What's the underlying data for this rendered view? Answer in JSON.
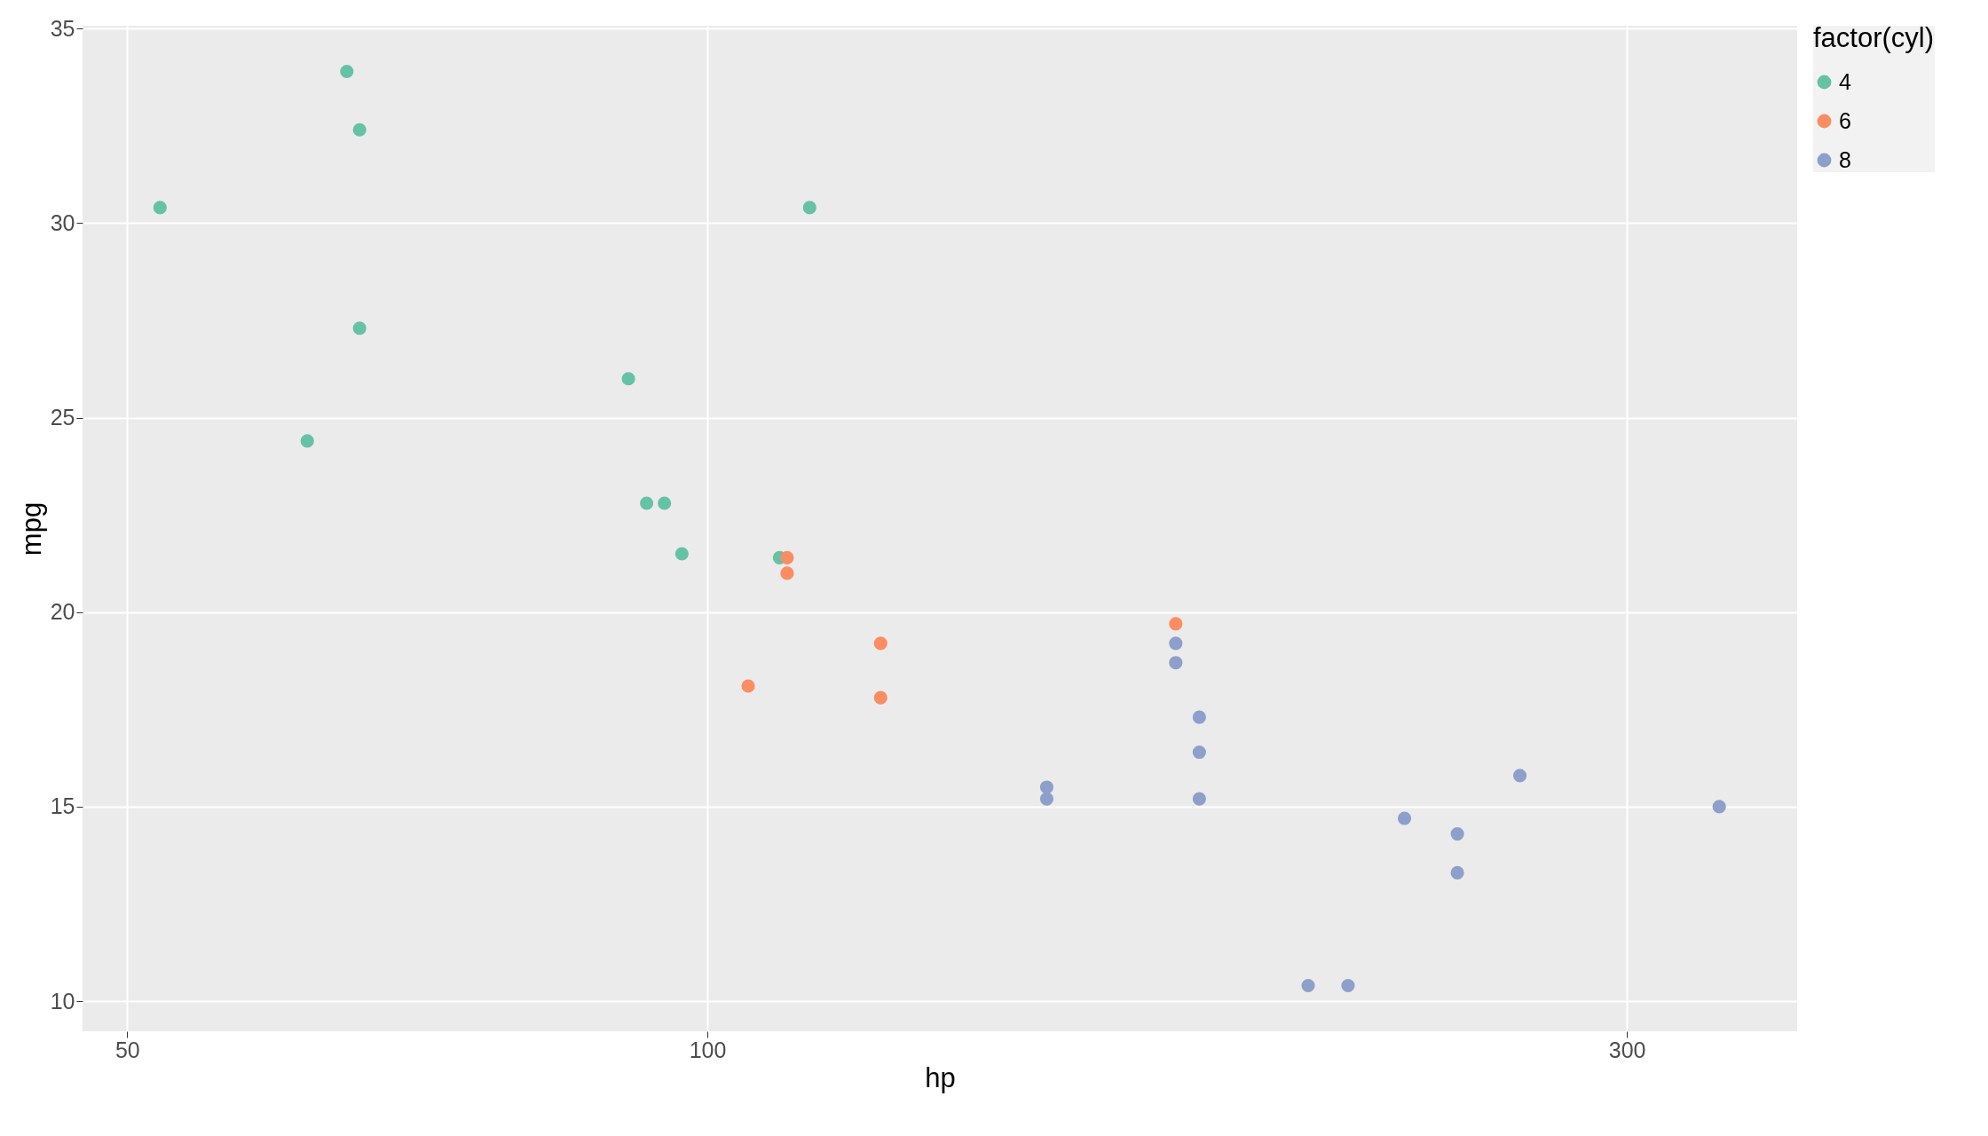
{
  "chart_data": {
    "type": "scatter",
    "xlabel": "hp",
    "ylabel": "mpg",
    "legend_title": "factor(cyl)",
    "log": "x",
    "grid": true,
    "legend": "right",
    "marker": "circle",
    "xlim": [
      47.4,
      367.7
    ],
    "xticks": [
      50,
      100,
      300
    ],
    "ylim": [
      9.225,
      35.075
    ],
    "yticks": [
      10,
      15,
      20,
      25,
      30,
      35
    ],
    "series": [
      {
        "name": "4",
        "color": "#66c2a5",
        "x": [
          93,
          62,
          95,
          66,
          52,
          65,
          97,
          66,
          91,
          113,
          109
        ],
        "values": [
          22.8,
          24.4,
          22.8,
          32.4,
          30.4,
          33.9,
          21.5,
          27.3,
          26.0,
          30.4,
          21.4
        ]
      },
      {
        "name": "6",
        "color": "#fc8d62",
        "x": [
          110,
          110,
          105,
          123,
          123,
          175
        ],
        "values": [
          21.0,
          21.4,
          18.1,
          19.2,
          17.8,
          19.7
        ]
      },
      {
        "name": "8",
        "color": "#8da0cb",
        "x": [
          175,
          245,
          180,
          180,
          180,
          205,
          215,
          230,
          150,
          150,
          245,
          175,
          264,
          335
        ],
        "values": [
          18.7,
          14.3,
          16.4,
          17.3,
          15.2,
          10.4,
          10.4,
          14.7,
          15.5,
          15.2,
          13.3,
          19.2,
          15.8,
          15.0
        ]
      }
    ]
  }
}
